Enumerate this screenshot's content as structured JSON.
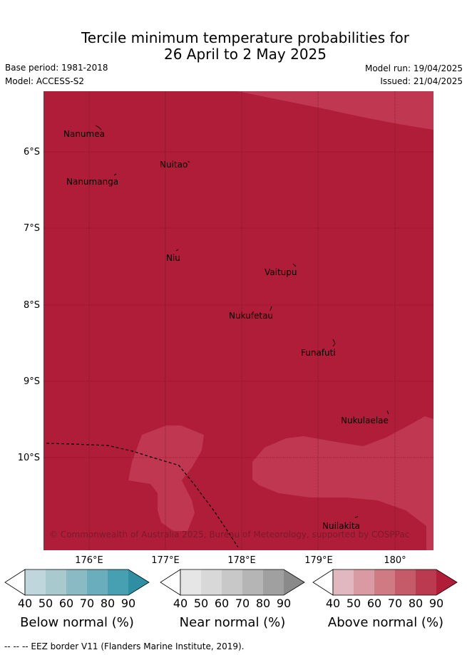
{
  "title_line1": "Tercile minimum temperature probabilities for",
  "title_line2": "26 April to 2 May 2025",
  "base_period": "Base period: 1981-2018",
  "model": "Model: ACCESS-S2",
  "model_run": "Model run: 19/04/2025",
  "issued": "Issued: 21/04/2025",
  "copyright": "© Commonwealth of Australia 2025, Bureau of Meteorology, supported by COSPPac",
  "footer": "--  --  -- EEZ border V11 (Flanders Marine Institute, 2019).",
  "axes": {
    "y_ticks": [
      "6°S",
      "7°S",
      "8°S",
      "9°S",
      "10°S"
    ],
    "x_ticks": [
      "176°E",
      "177°E",
      "178°E",
      "179°E",
      "180°"
    ]
  },
  "places": [
    {
      "name": "Nanumea"
    },
    {
      "name": "Nuitao"
    },
    {
      "name": "Nanumanga"
    },
    {
      "name": "Niu"
    },
    {
      "name": "Vaitupu"
    },
    {
      "name": "Nukufetau"
    },
    {
      "name": "Funafuti"
    },
    {
      "name": "Nukulaelae"
    },
    {
      "name": "Nuilakita"
    }
  ],
  "colors": {
    "above_90": "#b01d38",
    "above_80": "#bf3750",
    "ocean_dominant": "#b01d38"
  },
  "colorbars": [
    {
      "label": "Below normal (%)",
      "ticks": [
        "40",
        "50",
        "60",
        "70",
        "80",
        "90"
      ],
      "colors": [
        "#ffffff",
        "#bfd7dc",
        "#a8cace",
        "#8abbc5",
        "#6aaebd",
        "#46a0b1",
        "#2e8fa3"
      ]
    },
    {
      "label": "Near normal (%)",
      "ticks": [
        "40",
        "50",
        "60",
        "70",
        "80",
        "90"
      ],
      "colors": [
        "#ffffff",
        "#e6e6e6",
        "#d8d8d8",
        "#c8c8c8",
        "#b5b5b5",
        "#a0a0a0",
        "#8a8a8a"
      ]
    },
    {
      "label": "Above normal (%)",
      "ticks": [
        "40",
        "50",
        "60",
        "70",
        "80",
        "90"
      ],
      "colors": [
        "#ffffff",
        "#e2b8c0",
        "#d99aa3",
        "#d07a84",
        "#c55a68",
        "#bb3a50",
        "#b01d38"
      ]
    }
  ]
}
